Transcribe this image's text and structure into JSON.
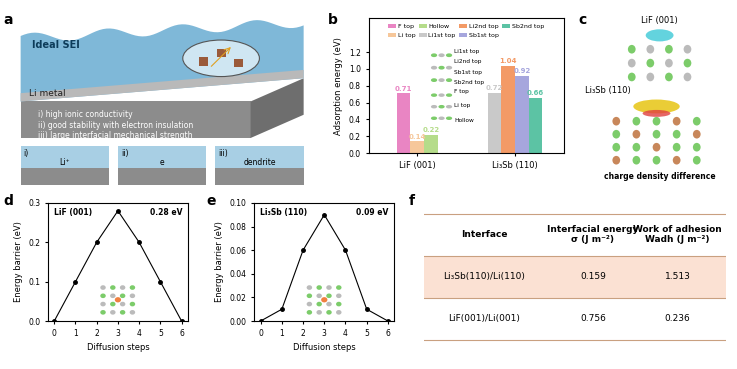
{
  "figure_labels": [
    "a",
    "b",
    "c",
    "d",
    "e",
    "f"
  ],
  "schematic": {
    "layer_labels": [
      "Ideal SEI",
      "Li metal"
    ],
    "requirements": [
      "i) high ionic conductivity",
      "ii) good stability with electron insulation",
      "iii) large interfacial mechanical strength"
    ],
    "subpanels": [
      {
        "label": "i)",
        "text": "Li⁺"
      },
      {
        "label": "ii)",
        "text": "e"
      },
      {
        "label": "iii)",
        "text": "dendrite"
      }
    ]
  },
  "chart_data": [
    {
      "type": "bar",
      "ylabel": "Adsorption energy (eV)",
      "categories": [
        "LiF (001)",
        "Li₃Sb (110)"
      ],
      "series": [
        {
          "name": "F top",
          "color": "#e985c3",
          "values": [
            0.71,
            null
          ]
        },
        {
          "name": "Li top",
          "color": "#f6c79a",
          "values": [
            0.14,
            null
          ]
        },
        {
          "name": "Hollow",
          "color": "#b5dc8a",
          "values": [
            0.22,
            null
          ]
        },
        {
          "name": "Li1st top",
          "color": "#c9c9c9",
          "values": [
            null,
            0.72
          ]
        },
        {
          "name": "Li2nd top",
          "color": "#f39a66",
          "values": [
            null,
            1.04
          ]
        },
        {
          "name": "Sb1st top",
          "color": "#a6a6dd",
          "values": [
            null,
            0.92
          ]
        },
        {
          "name": "Sb2nd top",
          "color": "#5cc3a4",
          "values": [
            null,
            0.66
          ]
        }
      ],
      "ylim": [
        0,
        1.6
      ],
      "yticks": [
        {
          "value": 0,
          "label": "0.0"
        },
        0.2,
        0.4,
        0.6,
        0.8,
        {
          "value": 1,
          "label": "1.0"
        },
        1.2
      ],
      "data_labels": true,
      "legend": "upper center",
      "grid": false,
      "annotations": [
        [
          "F top",
          "Li top",
          "Hollow"
        ],
        [
          "Li1st top",
          "Li2nd top",
          "Sb1st top",
          "Sb2nd top"
        ]
      ]
    },
    {
      "type": "line",
      "x": [
        0,
        1,
        2,
        3,
        4,
        5,
        6
      ],
      "values": [
        0,
        0.1,
        0.2,
        0.28,
        0.2,
        0.1,
        0
      ],
      "xlabel": "Diffusion steps",
      "ylabel": "Energy barrier (eV)",
      "xlim": [
        -0.3,
        6.3
      ],
      "xticks": [
        0,
        1,
        2,
        3,
        4,
        5,
        6
      ],
      "ylim": [
        0,
        0.3
      ],
      "yticks": [
        {
          "value": 0,
          "label": "0.0"
        },
        0.1,
        0.2,
        0.3
      ],
      "color": "#000000",
      "marker": "o",
      "line_style": "solid",
      "annotations": [
        "LiF (001)",
        "0.28 eV"
      ]
    },
    {
      "type": "line",
      "x": [
        0,
        1,
        2,
        3,
        4,
        5,
        6
      ],
      "values": [
        0,
        0.01,
        0.06,
        0.09,
        0.06,
        0.01,
        0
      ],
      "xlabel": "Diffusion steps",
      "ylabel": "Energy barrier (eV)",
      "xlim": [
        -0.3,
        6.3
      ],
      "xticks": [
        0,
        1,
        2,
        3,
        4,
        5,
        6
      ],
      "ylim": [
        0,
        0.1
      ],
      "yticks": [
        {
          "value": 0,
          "label": "0.00"
        },
        {
          "value": 0.02,
          "label": "0.02"
        },
        {
          "value": 0.04,
          "label": "0.04"
        },
        {
          "value": 0.06,
          "label": "0.06"
        },
        {
          "value": 0.08,
          "label": "0.08"
        },
        {
          "value": 0.1,
          "label": "0.10"
        }
      ],
      "color": "#000000",
      "marker": "o",
      "line_style": "solid",
      "annotations": [
        "Li₃Sb (110)",
        "0.09 eV"
      ]
    }
  ],
  "charge_density": {
    "structures": [
      "LiF (001)",
      "Li₃Sb (110)"
    ],
    "caption": "charge density difference"
  },
  "table": {
    "header": [
      "Interface",
      "Interfacial energy\nσ (J m⁻²)",
      "Work of adhesion\nWadh (J m⁻²)"
    ],
    "rows": [
      [
        "Li₃Sb(110)/Li(110)",
        "0.159",
        "1.513"
      ],
      [
        "LiF(001)/Li(001)",
        "0.756",
        "0.236"
      ]
    ]
  }
}
